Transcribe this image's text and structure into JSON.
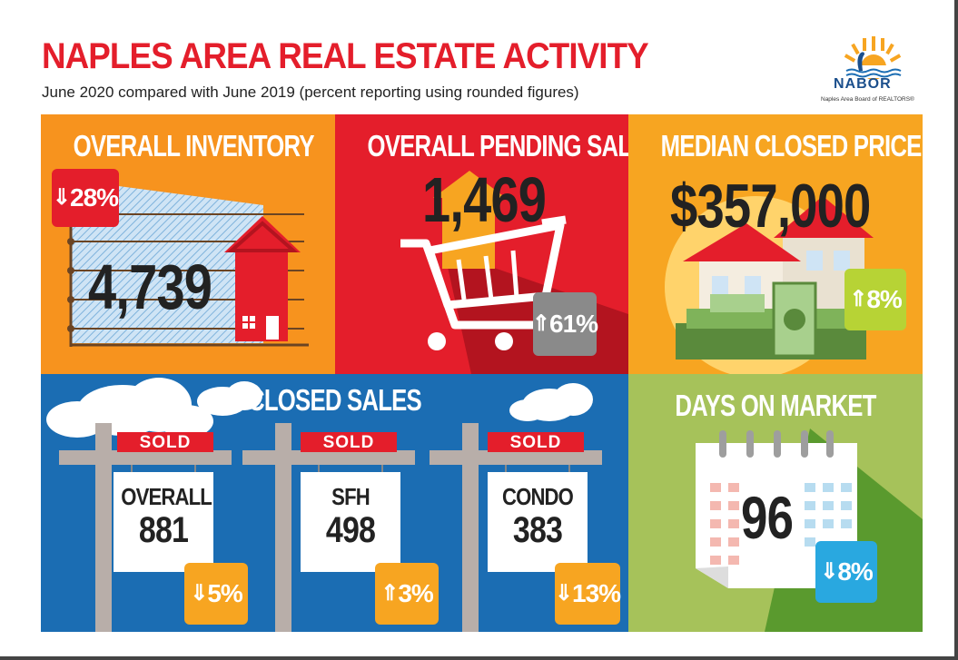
{
  "header": {
    "title": "NAPLES AREA REAL ESTATE ACTIVITY",
    "subtitle": "June 2020 compared with June 2019 (percent reporting using rounded figures)"
  },
  "logo": {
    "name": "NABOR",
    "tagline": "Naples Area Board of REALTORS®"
  },
  "inventory": {
    "title": "OVERALL INVENTORY",
    "value": "4,739",
    "change": "28%",
    "direction": "down",
    "badge_color": "#e41e2b"
  },
  "pending": {
    "title": "OVERALL PENDING SALES",
    "value": "1,469",
    "change": "61%",
    "direction": "up",
    "badge_color": "#8a8a8a"
  },
  "median": {
    "title": "MEDIAN CLOSED PRICE",
    "value": "$357,000",
    "change": "8%",
    "direction": "up",
    "badge_color": "#b7d335"
  },
  "closed": {
    "title": "CLOSED SALES",
    "sign_label": "SOLD",
    "signs": [
      {
        "label": "OVERALL",
        "value": "881",
        "change": "5%",
        "direction": "down"
      },
      {
        "label": "SFH",
        "value": "498",
        "change": "3%",
        "direction": "up"
      },
      {
        "label": "CONDO",
        "value": "383",
        "change": "13%",
        "direction": "down"
      }
    ],
    "badge_color": "#f7a521"
  },
  "days": {
    "title": "DAYS ON MARKET",
    "value": "96",
    "change": "8%",
    "direction": "down",
    "badge_color": "#29a8e0"
  },
  "colors": {
    "red": "#e41e2b",
    "orange": "#f7931e",
    "blue": "#1b6db3",
    "green": "#a6c25a"
  }
}
